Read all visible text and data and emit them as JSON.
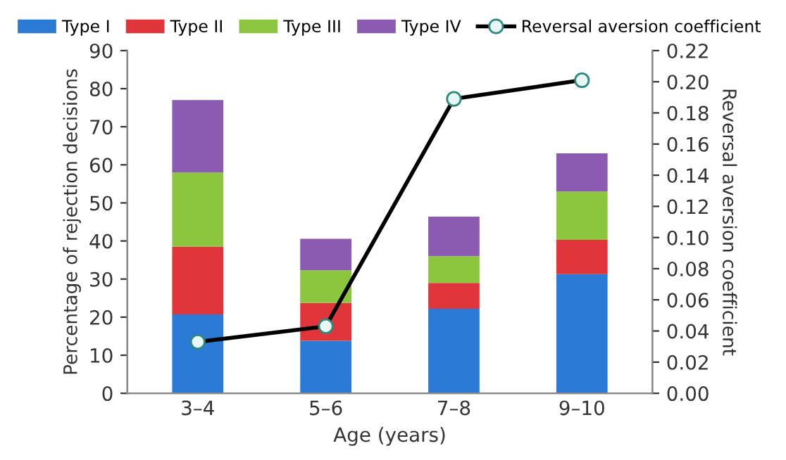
{
  "chart_data": {
    "type": "bar",
    "stacked": true,
    "xlabel": "Age (years)",
    "ylabel": "Percentage of rejection decisions",
    "y2label": "Reversal aversion coefficient",
    "categories": [
      "3–4",
      "5–6",
      "7–8",
      "9–10"
    ],
    "series": [
      {
        "name": "Type I",
        "color": "#2b7bd6",
        "values": [
          20.7,
          13.8,
          22.2,
          31.3
        ]
      },
      {
        "name": "Type II",
        "color": "#e0353a",
        "values": [
          17.8,
          9.9,
          6.8,
          9.0
        ]
      },
      {
        "name": "Type III",
        "color": "#8cc63f",
        "values": [
          19.5,
          8.6,
          7.0,
          12.7
        ]
      },
      {
        "name": "Type IV",
        "color": "#8a5bb0",
        "values": [
          19.0,
          8.3,
          10.4,
          10.0
        ]
      },
      {
        "name": "Reversal aversion coefficient",
        "type": "line",
        "axis": "y2",
        "color": "#000000",
        "marker": "circle",
        "values": [
          0.033,
          0.043,
          0.189,
          0.201
        ]
      }
    ],
    "ylim": [
      0,
      90
    ],
    "yticks": [
      0,
      10,
      20,
      30,
      40,
      50,
      60,
      70,
      80,
      90
    ],
    "y2lim": [
      0,
      0.22
    ],
    "y2ticks": [
      {
        "value": 0,
        "label": "0.00"
      },
      {
        "value": 0.02,
        "label": "0.02"
      },
      {
        "value": 0.04,
        "label": "0.04"
      },
      {
        "value": 0.06,
        "label": "0.06"
      },
      {
        "value": 0.08,
        "label": "0.08"
      },
      {
        "value": 0.1,
        "label": "0.10"
      },
      {
        "value": 0.12,
        "label": "0.12"
      },
      {
        "value": 0.14,
        "label": "0.14"
      },
      {
        "value": 0.16,
        "label": "0.16"
      },
      {
        "value": 0.18,
        "label": "0.18"
      },
      {
        "value": 0.2,
        "label": "0.20"
      },
      {
        "value": 0.22,
        "label": "0.22"
      }
    ],
    "grid": false,
    "legend": "top"
  }
}
